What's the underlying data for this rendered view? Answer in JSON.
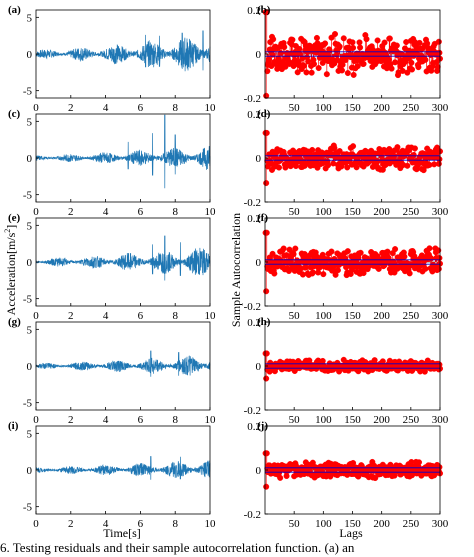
{
  "figure": {
    "caption": "6.   Testing residuals and their sample autocorrelation function. (a) an"
  },
  "chart_data": [
    {
      "type": "line",
      "panel": "(a)",
      "xlim": [
        0,
        10
      ],
      "ylim": [
        -6,
        6
      ],
      "xticks": [
        "0",
        "2",
        "4",
        "6",
        "8",
        "10"
      ],
      "yticks": [
        "-5",
        "0",
        "5"
      ],
      "amp_start": 0.6,
      "amp_end": 2.8,
      "spikes": [
        [
          6.3,
          2.6
        ],
        [
          7.1,
          2.5
        ],
        [
          8.4,
          2.9
        ],
        [
          9.6,
          3.2
        ]
      ]
    },
    {
      "type": "scatter",
      "panel": "(b)",
      "xlim": [
        0,
        300
      ],
      "ylim": [
        -0.2,
        0.2
      ],
      "xticks": [
        "50",
        "100",
        "150",
        "200",
        "250",
        "300"
      ],
      "yticks": [
        "-0.2",
        "0",
        "0.2"
      ],
      "spread": 0.1,
      "conf": 0.01
    },
    {
      "type": "line",
      "panel": "(c)",
      "xlim": [
        0,
        10
      ],
      "ylim": [
        -6,
        6
      ],
      "xticks": [
        "0",
        "2",
        "4",
        "6",
        "8",
        "10"
      ],
      "yticks": [
        "-5",
        "0",
        "5"
      ],
      "amp_start": 0.4,
      "amp_end": 1.8,
      "spikes": [
        [
          7.4,
          5.9
        ],
        [
          6.7,
          3.4
        ],
        [
          8.0,
          3.2
        ],
        [
          5.3,
          2.2
        ]
      ]
    },
    {
      "type": "scatter",
      "panel": "(d)",
      "xlim": [
        0,
        300
      ],
      "ylim": [
        -0.2,
        0.2
      ],
      "xticks": [
        "50",
        "100",
        "150",
        "200",
        "250",
        "300"
      ],
      "yticks": [
        "-0.2",
        "0",
        "0.2"
      ],
      "spread": 0.06,
      "conf": 0.01
    },
    {
      "type": "line",
      "panel": "(e)",
      "xlim": [
        0,
        10
      ],
      "ylim": [
        -6,
        6
      ],
      "xticks": [
        "0",
        "2",
        "4",
        "6",
        "8",
        "10"
      ],
      "yticks": [
        "-5",
        "0",
        "5"
      ],
      "amp_start": 0.5,
      "amp_end": 2.2,
      "spikes": [
        [
          7.4,
          3.6
        ],
        [
          8.3,
          2.7
        ],
        [
          6.7,
          2.4
        ]
      ]
    },
    {
      "type": "scatter",
      "panel": "(f)",
      "xlim": [
        0,
        300
      ],
      "ylim": [
        -0.2,
        0.2
      ],
      "xticks": [
        "50",
        "100",
        "150",
        "200",
        "250",
        "300"
      ],
      "yticks": [
        "-0.2",
        "0",
        "0.2"
      ],
      "spread": 0.07,
      "conf": 0.01
    },
    {
      "type": "line",
      "panel": "(g)",
      "xlim": [
        0,
        10
      ],
      "ylim": [
        -6,
        6
      ],
      "xticks": [
        "0",
        "2",
        "4",
        "6",
        "8",
        "10"
      ],
      "yticks": [
        "-5",
        "0",
        "5"
      ],
      "amp_start": 0.4,
      "amp_end": 1.6,
      "spikes": [
        [
          6.6,
          2.1
        ],
        [
          8.2,
          1.9
        ]
      ]
    },
    {
      "type": "scatter",
      "panel": "(h)",
      "xlim": [
        0,
        300
      ],
      "ylim": [
        -0.2,
        0.2
      ],
      "xticks": [
        "50",
        "100",
        "150",
        "200",
        "250",
        "300"
      ],
      "yticks": [
        "-0.2",
        "0",
        "0.2"
      ],
      "spread": 0.03,
      "conf": 0.01
    },
    {
      "type": "line",
      "panel": "(i)",
      "xlim": [
        0,
        10
      ],
      "ylim": [
        -6,
        6
      ],
      "xticks": [
        "0",
        "2",
        "4",
        "6",
        "8",
        "10"
      ],
      "yticks": [
        "-5",
        "0",
        "5"
      ],
      "amp_start": 0.4,
      "amp_end": 1.5,
      "spikes": [
        [
          6.6,
          1.9
        ],
        [
          8.3,
          1.8
        ]
      ]
    },
    {
      "type": "scatter",
      "panel": "(j)",
      "xlim": [
        0,
        300
      ],
      "ylim": [
        -0.2,
        0.2
      ],
      "xticks": [
        "50",
        "100",
        "150",
        "200",
        "250",
        "300"
      ],
      "yticks": [
        "-0.2",
        "0",
        "0.2"
      ],
      "spread": 0.04,
      "conf": 0.01
    }
  ],
  "axes_labels": {
    "left_y": "Acceleration[m/s",
    "left_y_sup": "2",
    "left_y_end": "]",
    "left_x": "Time[s]",
    "right_y": "Sample Autocorrelation",
    "right_x": "Lags"
  },
  "colors": {
    "signal": "#1f77b4",
    "acf_points": "#ff0000",
    "conf_band": "#0000cc"
  }
}
